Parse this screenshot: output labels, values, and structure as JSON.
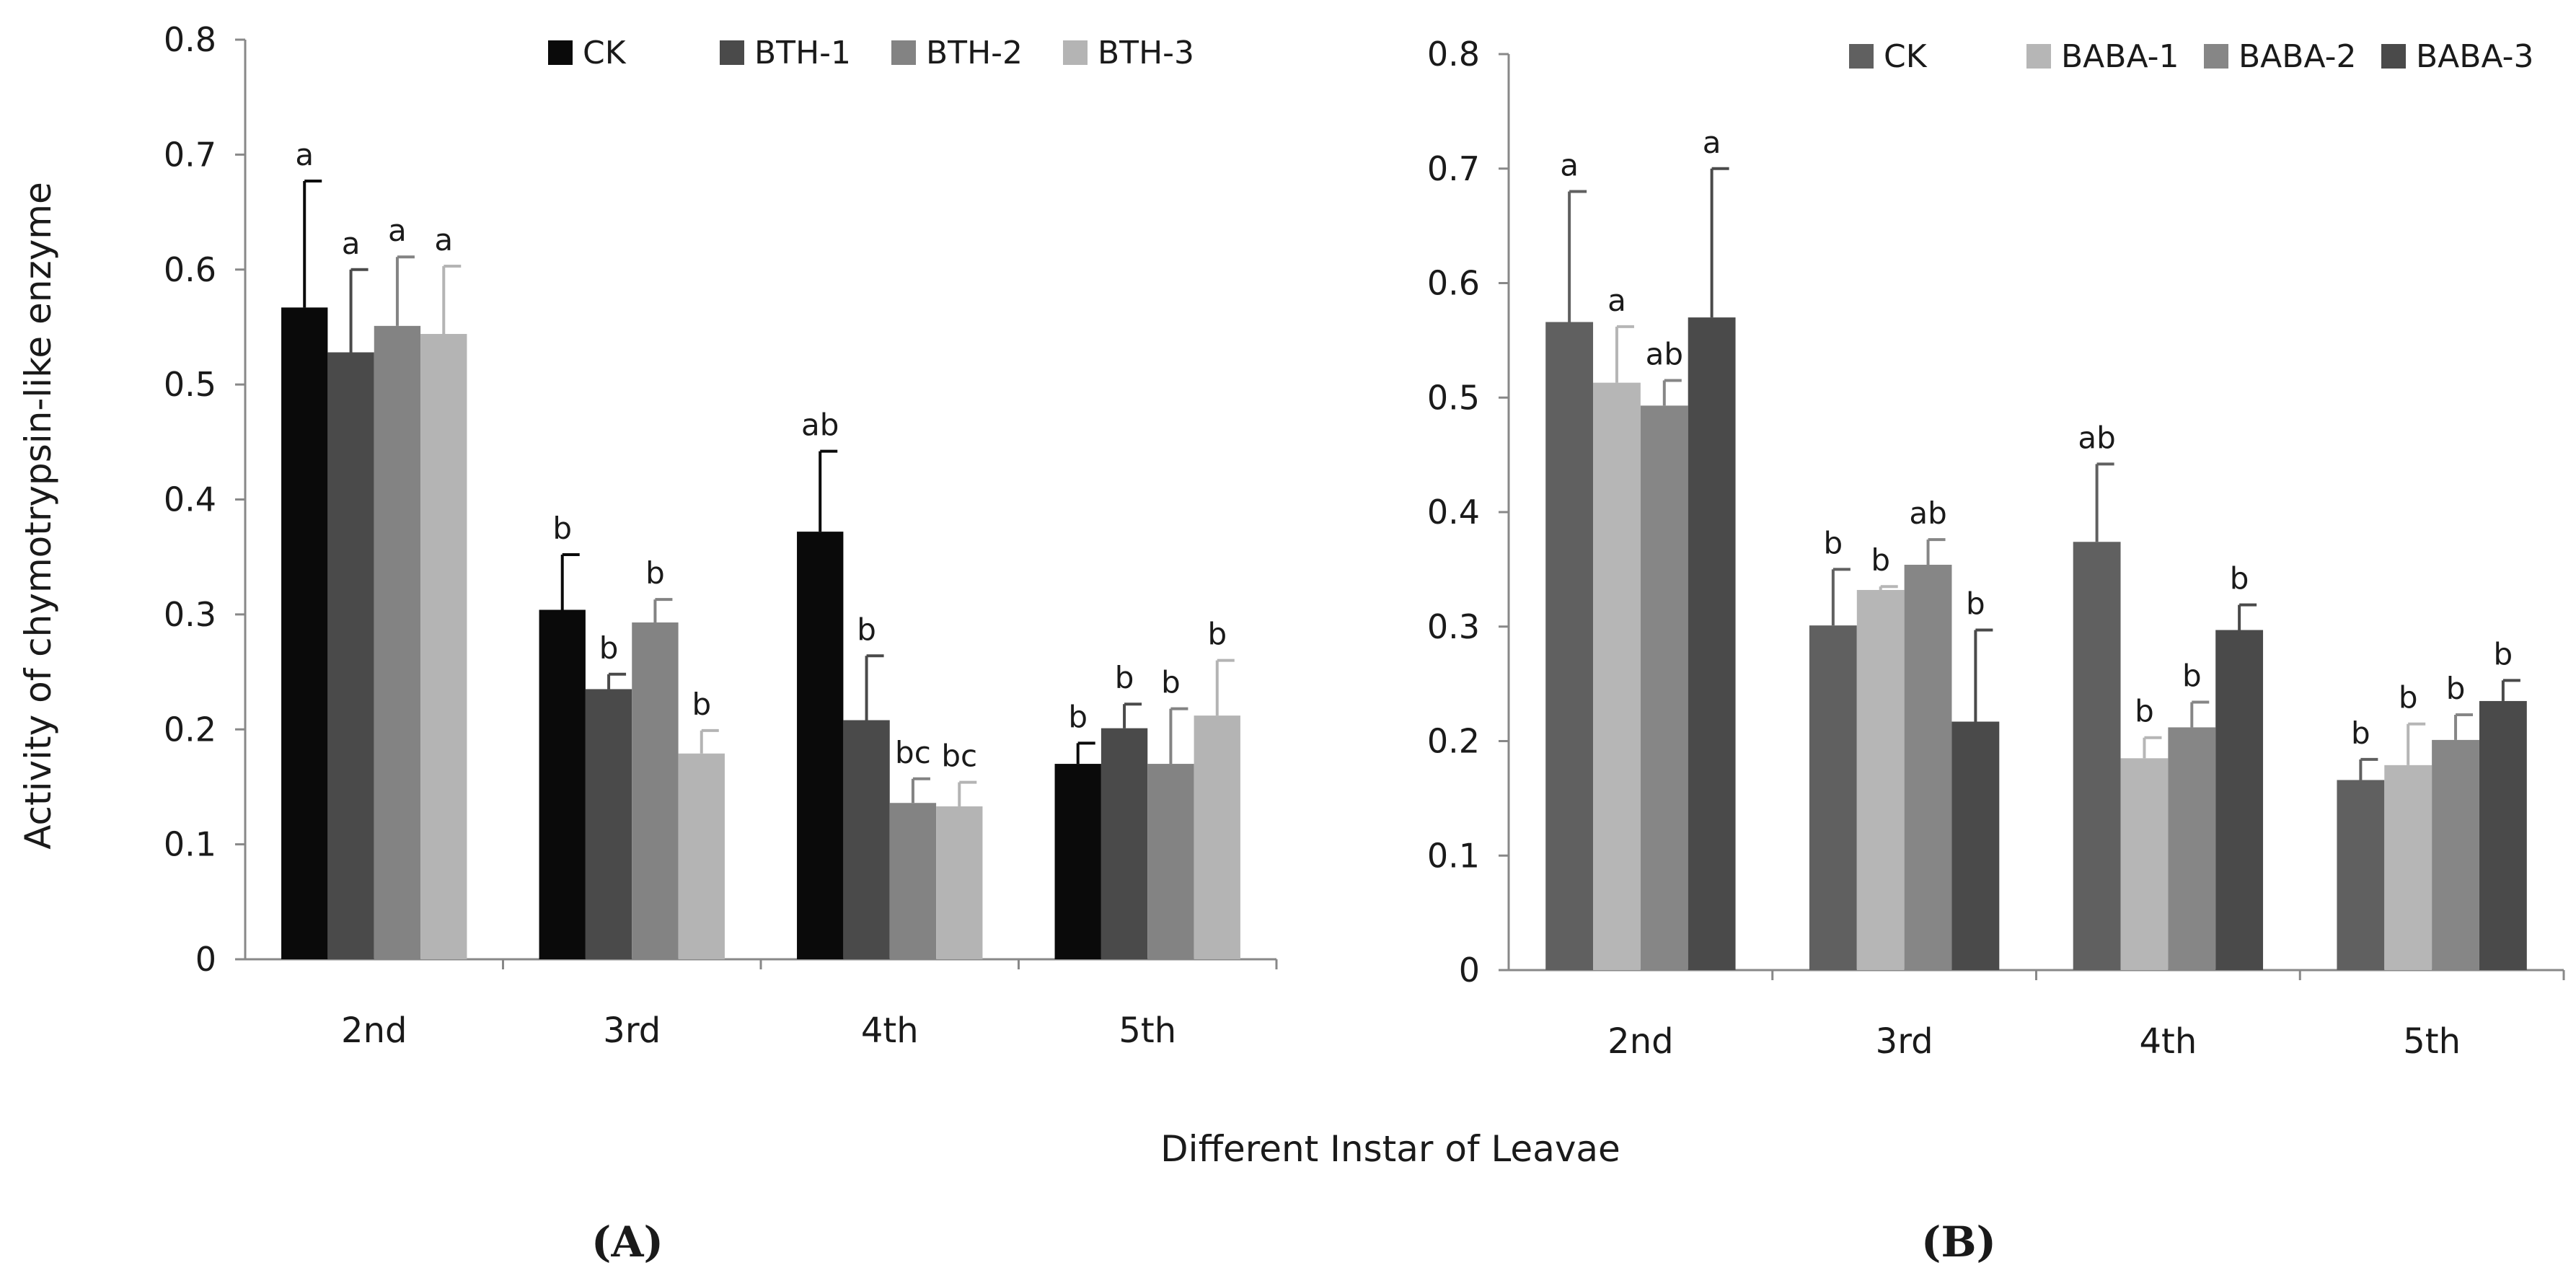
{
  "figure": {
    "ylabel": "Activity of chymotrypsin-like enzyme",
    "xlabel": "Different Instar of Leavae"
  },
  "chart_data": [
    {
      "type": "bar",
      "panel_label": "(A)",
      "categories": [
        "2nd",
        "3rd",
        "4th",
        "5th"
      ],
      "ylim": [
        0,
        0.8
      ],
      "yticks": [
        "0",
        "0.1",
        "0.2",
        "0.3",
        "0.4",
        "0.5",
        "0.6",
        "0.7",
        "0.8"
      ],
      "legend_position": "top-right",
      "series": [
        {
          "name": "CK",
          "color": "#0a0a0a",
          "values": [
            0.567,
            0.304,
            0.372,
            0.17
          ],
          "errors": [
            0.11,
            0.048,
            0.07,
            0.018
          ],
          "letters": [
            "a",
            "b",
            "ab",
            "b"
          ]
        },
        {
          "name": "BTH-1",
          "color": "#4a4a4a",
          "values": [
            0.528,
            0.235,
            0.208,
            0.201
          ],
          "errors": [
            0.072,
            0.013,
            0.056,
            0.021
          ],
          "letters": [
            "a",
            "b",
            "b",
            "b"
          ]
        },
        {
          "name": "BTH-2",
          "color": "#838383",
          "values": [
            0.551,
            0.293,
            0.136,
            0.17
          ],
          "errors": [
            0.06,
            0.02,
            0.021,
            0.048
          ],
          "letters": [
            "a",
            "b",
            "bc",
            "b"
          ]
        },
        {
          "name": "BTH-3",
          "color": "#b4b4b4",
          "values": [
            0.544,
            0.179,
            0.133,
            0.212
          ],
          "errors": [
            0.059,
            0.02,
            0.021,
            0.048
          ],
          "letters": [
            "a",
            "b",
            "bc",
            "b"
          ]
        }
      ]
    },
    {
      "type": "bar",
      "panel_label": "(B)",
      "categories": [
        "2nd",
        "3rd",
        "4th",
        "5th"
      ],
      "ylim": [
        0,
        0.8
      ],
      "yticks": [
        "0",
        "0.1",
        "0.2",
        "0.3",
        "0.4",
        "0.5",
        "0.6",
        "0.7",
        "0.8"
      ],
      "legend_position": "top-right",
      "series": [
        {
          "name": "CK",
          "color": "#606060",
          "values": [
            0.566,
            0.301,
            0.374,
            0.166
          ],
          "errors": [
            0.114,
            0.049,
            0.068,
            0.018
          ],
          "letters": [
            "a",
            "b",
            "ab",
            "b"
          ]
        },
        {
          "name": "BABA-1",
          "color": "#b6b6b6",
          "values": [
            0.513,
            0.332,
            0.185,
            0.179
          ],
          "errors": [
            0.049,
            0.003,
            0.018,
            0.036
          ],
          "letters": [
            "a",
            "b",
            "b",
            "b"
          ]
        },
        {
          "name": "BABA-2",
          "color": "#868686",
          "values": [
            0.493,
            0.354,
            0.212,
            0.201
          ],
          "errors": [
            0.022,
            0.022,
            0.022,
            0.022
          ],
          "letters": [
            "ab",
            "ab",
            "b",
            "b"
          ]
        },
        {
          "name": "BABA-3",
          "color": "#4a4a4a",
          "values": [
            0.57,
            0.217,
            0.297,
            0.235
          ],
          "errors": [
            0.13,
            0.08,
            0.022,
            0.018
          ],
          "letters": [
            "a",
            "b",
            "b",
            "b"
          ]
        }
      ]
    }
  ]
}
